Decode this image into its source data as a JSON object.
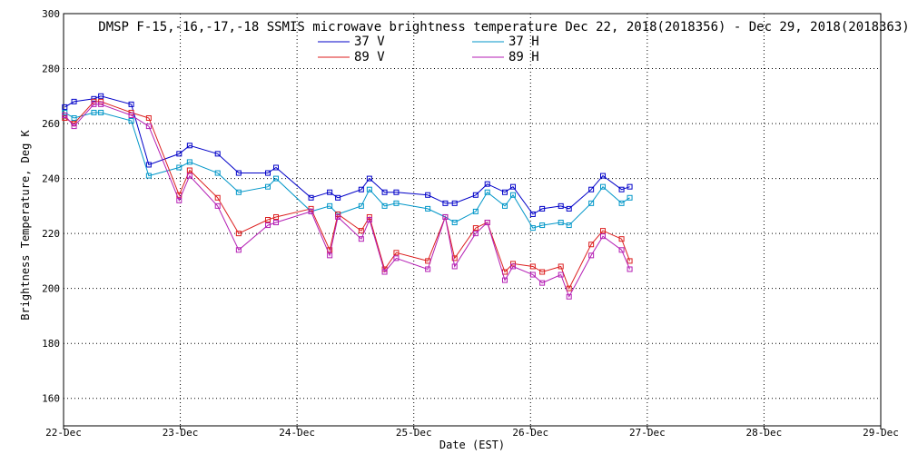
{
  "chart_data": {
    "type": "line",
    "title": "DMSP F-15,-16,-17,-18 SSMIS microwave brightness temperature Dec 22, 2018(2018356) - Dec 29, 2018(2018363)",
    "xlabel": "Date (EST)",
    "ylabel": "Brightness Temperature, Deg K",
    "x_unit": "days since 22-Dec",
    "xlim": [
      0,
      7
    ],
    "ylim": [
      150,
      300
    ],
    "y_ticks": [
      160,
      180,
      200,
      220,
      240,
      260,
      280,
      300
    ],
    "x_tick_labels": [
      "22-Dec",
      "23-Dec",
      "24-Dec",
      "25-Dec",
      "26-Dec",
      "27-Dec",
      "28-Dec",
      "29-Dec"
    ],
    "x_tick_values": [
      0,
      1,
      2,
      3,
      4,
      5,
      6,
      7
    ],
    "grid": true,
    "legend_position": "top-center",
    "series": [
      {
        "name": "37 V",
        "color": "#0000c8",
        "x": [
          0.01,
          0.09,
          0.26,
          0.32,
          0.58,
          0.73,
          0.99,
          1.08,
          1.32,
          1.5,
          1.75,
          1.82,
          2.12,
          2.28,
          2.35,
          2.55,
          2.62,
          2.75,
          2.85,
          3.12,
          3.27,
          3.35,
          3.53,
          3.63,
          3.78,
          3.85,
          4.02,
          4.1,
          4.26,
          4.33,
          4.52,
          4.62,
          4.78,
          4.85
        ],
        "y": [
          266,
          268,
          269,
          270,
          267,
          245,
          249,
          252,
          249,
          242,
          242,
          244,
          233,
          235,
          233,
          236,
          240,
          235,
          235,
          234,
          231,
          231,
          234,
          238,
          235,
          237,
          227,
          229,
          230,
          229,
          236,
          241,
          236,
          237
        ]
      },
      {
        "name": "37 H",
        "color": "#0096c8",
        "x": [
          0.01,
          0.09,
          0.26,
          0.32,
          0.58,
          0.73,
          0.99,
          1.08,
          1.32,
          1.5,
          1.75,
          1.82,
          2.12,
          2.28,
          2.35,
          2.55,
          2.62,
          2.75,
          2.85,
          3.12,
          3.27,
          3.35,
          3.53,
          3.63,
          3.78,
          3.85,
          4.02,
          4.1,
          4.26,
          4.33,
          4.52,
          4.62,
          4.78,
          4.85
        ],
        "y": [
          264,
          262,
          264,
          264,
          261,
          241,
          244,
          246,
          242,
          235,
          237,
          240,
          228,
          230,
          227,
          230,
          236,
          230,
          231,
          229,
          226,
          224,
          228,
          235,
          230,
          234,
          222,
          223,
          224,
          223,
          231,
          237,
          231,
          233
        ]
      },
      {
        "name": "89 V",
        "color": "#dc1e1e",
        "x": [
          0.01,
          0.09,
          0.26,
          0.32,
          0.58,
          0.73,
          0.99,
          1.08,
          1.32,
          1.5,
          1.75,
          1.82,
          2.12,
          2.28,
          2.35,
          2.55,
          2.62,
          2.75,
          2.85,
          3.12,
          3.27,
          3.35,
          3.53,
          3.63,
          3.78,
          3.85,
          4.02,
          4.1,
          4.26,
          4.33,
          4.52,
          4.62,
          4.78,
          4.85
        ],
        "y": [
          262,
          260,
          268,
          268,
          264,
          262,
          234,
          243,
          233,
          220,
          225,
          226,
          229,
          214,
          227,
          221,
          226,
          207,
          213,
          210,
          226,
          211,
          222,
          224,
          206,
          209,
          208,
          206,
          208,
          200,
          216,
          221,
          218,
          210
        ]
      },
      {
        "name": "89 H",
        "color": "#b41eb4",
        "x": [
          0.01,
          0.09,
          0.26,
          0.32,
          0.58,
          0.73,
          0.99,
          1.08,
          1.32,
          1.5,
          1.75,
          1.82,
          2.12,
          2.28,
          2.35,
          2.55,
          2.62,
          2.75,
          2.85,
          3.12,
          3.27,
          3.35,
          3.53,
          3.63,
          3.78,
          3.85,
          4.02,
          4.1,
          4.26,
          4.33,
          4.52,
          4.62,
          4.78,
          4.85
        ],
        "y": [
          263,
          259,
          267,
          267,
          263,
          259,
          232,
          241,
          230,
          214,
          223,
          224,
          228,
          212,
          226,
          218,
          225,
          206,
          211,
          207,
          226,
          208,
          220,
          224,
          203,
          208,
          205,
          202,
          205,
          197,
          212,
          219,
          214,
          207
        ]
      }
    ]
  }
}
